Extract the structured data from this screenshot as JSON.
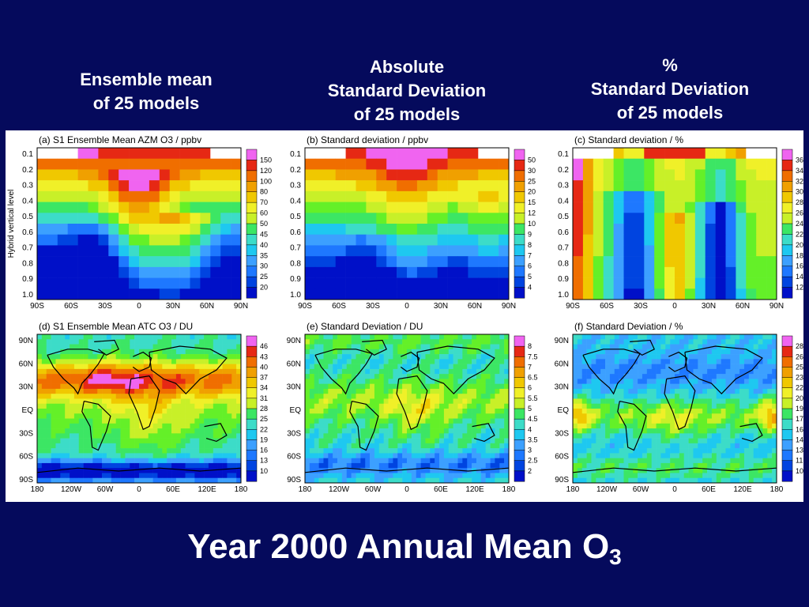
{
  "headers": {
    "ensemble": [
      "Ensemble mean",
      "of 25 models"
    ],
    "absolute": [
      "Absolute",
      "Standard Deviation",
      "of 25 models"
    ],
    "percent": [
      "%",
      "Standard Deviation",
      "of 25 models"
    ]
  },
  "main_title": "Year 2000 Annual Mean O",
  "main_title_sub": "3",
  "colors": {
    "background": "#050a5c",
    "palette": [
      "#0010c8",
      "#0044e0",
      "#1e78ff",
      "#3ca0ff",
      "#1ec8f0",
      "#3cdcc8",
      "#3ce664",
      "#64f028",
      "#c8f028",
      "#f0f028",
      "#f0c800",
      "#f0a000",
      "#f06e00",
      "#e62814",
      "#f064f0"
    ]
  },
  "chart_data": [
    {
      "type": "heatmap",
      "panel": "a",
      "title": "(a) S1 Ensemble Mean AZM O3 / ppbv",
      "ylabel": "Hybrid vertical level",
      "y_ticks": [
        "0.1",
        "0.2",
        "0.3",
        "0.4",
        "0.5",
        "0.6",
        "0.7",
        "0.8",
        "0.9",
        "1.0"
      ],
      "x_ticks": [
        "90S",
        "60S",
        "30S",
        "0",
        "30N",
        "60N",
        "90N"
      ],
      "colorbar": [
        "20",
        "25",
        "30",
        "35",
        "40",
        "45",
        "50",
        "60",
        "70",
        "80",
        "100",
        "120",
        "150"
      ]
    },
    {
      "type": "heatmap",
      "panel": "b",
      "title": "(b) Standard deviation / ppbv",
      "y_ticks": [
        "0.1",
        "0.2",
        "0.3",
        "0.4",
        "0.5",
        "0.6",
        "0.7",
        "0.8",
        "0.9",
        "1.0"
      ],
      "x_ticks": [
        "90S",
        "60S",
        "30S",
        "0",
        "30N",
        "60N",
        "90N"
      ],
      "colorbar": [
        "4",
        "5",
        "6",
        "7",
        "8",
        "9",
        "10",
        "12",
        "15",
        "20",
        "25",
        "30",
        "50"
      ]
    },
    {
      "type": "heatmap",
      "panel": "c",
      "title": "(c) Standard deviation / %",
      "y_ticks": [
        "0.1",
        "0.2",
        "0.3",
        "0.4",
        "0.5",
        "0.6",
        "0.7",
        "0.8",
        "0.9",
        "1.0"
      ],
      "x_ticks": [
        "90S",
        "60S",
        "30S",
        "0",
        "30N",
        "60N",
        "90N"
      ],
      "colorbar": [
        "12",
        "14",
        "16",
        "18",
        "20",
        "22",
        "24",
        "26",
        "28",
        "30",
        "32",
        "34",
        "36"
      ]
    },
    {
      "type": "heatmap",
      "panel": "d",
      "title": "(d) S1 Ensemble Mean ATC O3 / DU",
      "y_ticks": [
        "90N",
        "60N",
        "30N",
        "EQ",
        "30S",
        "60S",
        "90S"
      ],
      "x_ticks": [
        "180",
        "120W",
        "60W",
        "0",
        "60E",
        "120E",
        "180"
      ],
      "colorbar": [
        "10",
        "13",
        "16",
        "19",
        "22",
        "25",
        "28",
        "31",
        "34",
        "37",
        "40",
        "43",
        "46"
      ]
    },
    {
      "type": "heatmap",
      "panel": "e",
      "title": "(e) Standard Deviation / DU",
      "y_ticks": [
        "90N",
        "60N",
        "30N",
        "EQ",
        "30S",
        "60S",
        "90S"
      ],
      "x_ticks": [
        "180",
        "120W",
        "60W",
        "0",
        "60E",
        "120E",
        "180"
      ],
      "colorbar": [
        "2",
        "2.5",
        "3",
        "3.5",
        "4",
        "4.5",
        "5",
        "5.5",
        "6",
        "6.5",
        "7",
        "7.5",
        "8"
      ]
    },
    {
      "type": "heatmap",
      "panel": "f",
      "title": "(f) Standard Deviation / %",
      "y_ticks": [
        "90N",
        "60N",
        "30N",
        "EQ",
        "30S",
        "60S",
        "90S"
      ],
      "x_ticks": [
        "180",
        "120W",
        "60W",
        "0",
        "60E",
        "120E",
        "180"
      ],
      "colorbar": [
        "10",
        "11.5",
        "13",
        "14.5",
        "16",
        "17.5",
        "19",
        "20.5",
        "22",
        "23.5",
        "25",
        "26.5",
        "28"
      ]
    }
  ]
}
